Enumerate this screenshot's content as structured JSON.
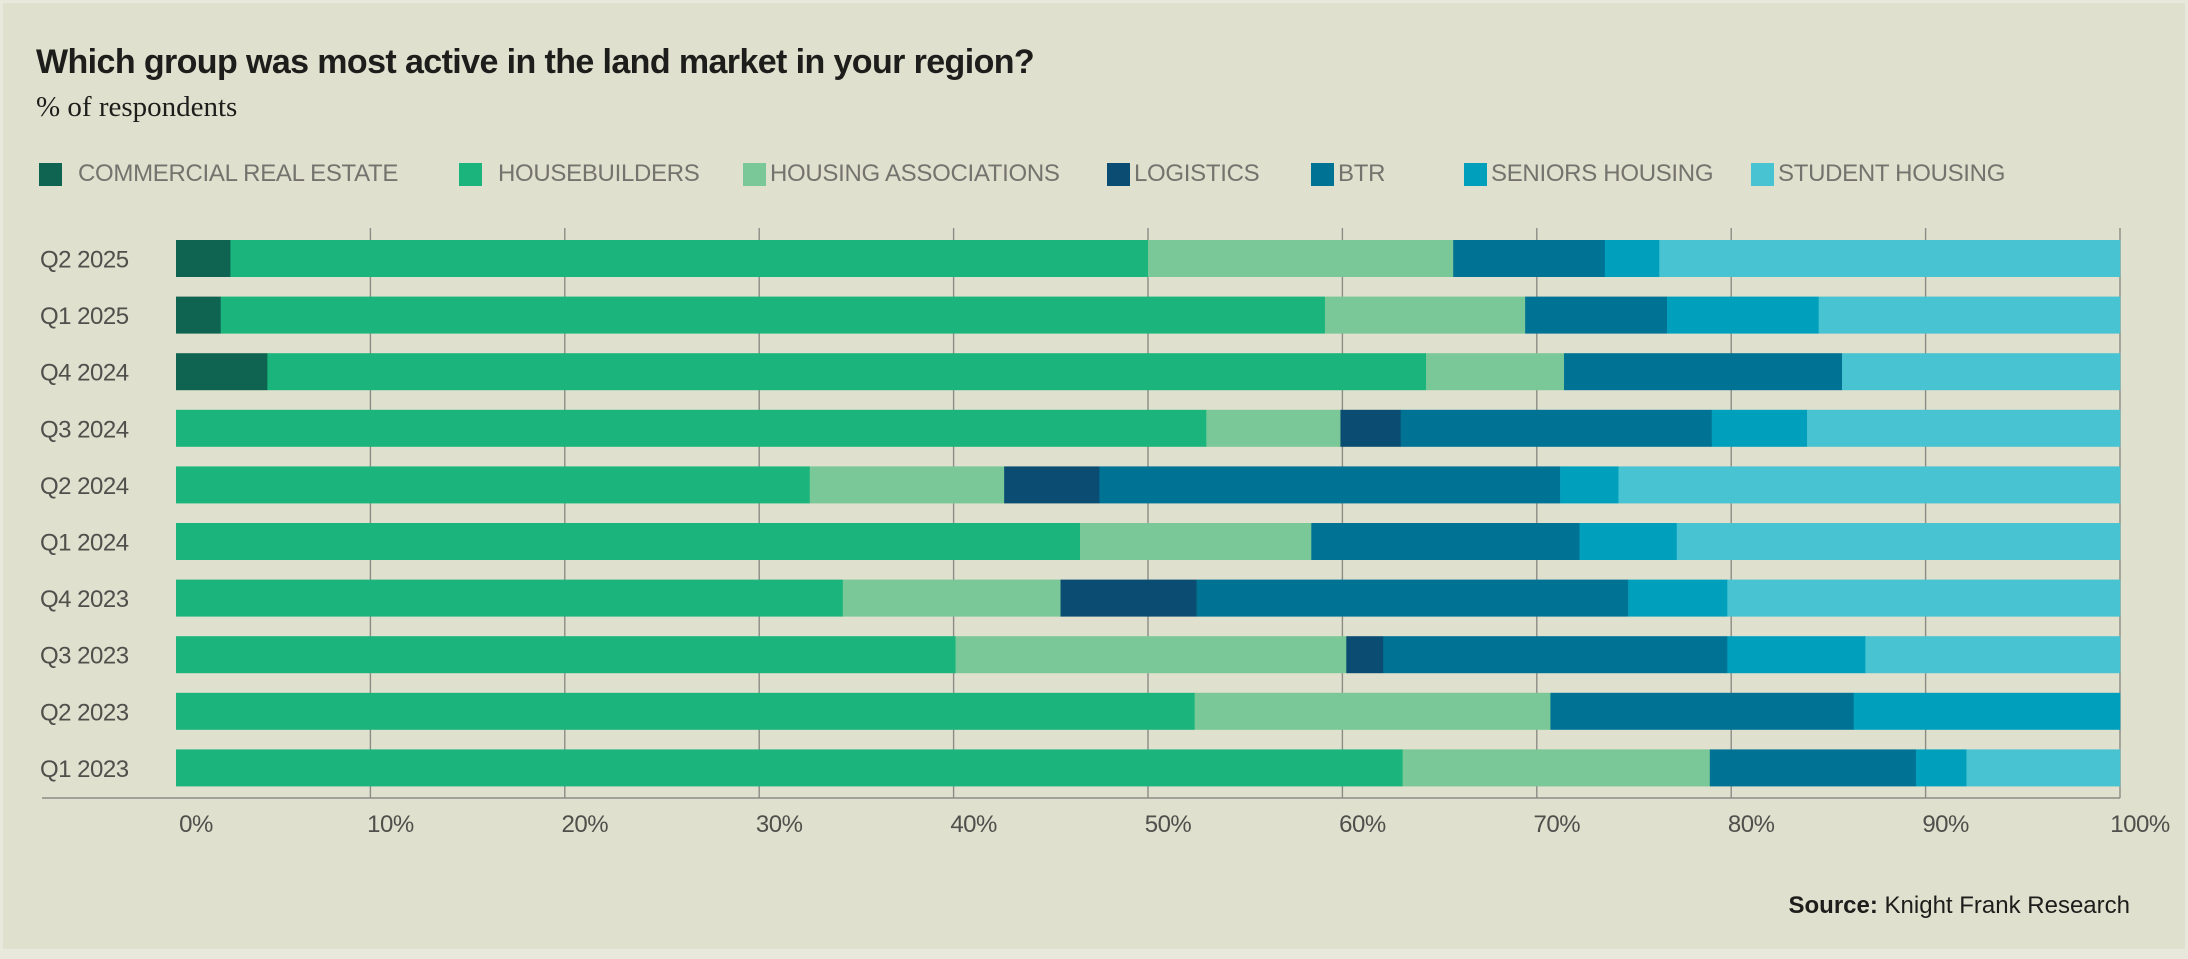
{
  "title": "Which group was most active in the land market in your region?",
  "subtitle": "% of respondents",
  "source_label": "Source:",
  "source_text": " Knight Frank Research",
  "chart_data": {
    "type": "bar",
    "orientation": "horizontal",
    "stacked": true,
    "title": "Which group was most active in the land market in your region?",
    "subtitle": "% of respondents",
    "xlabel": "",
    "ylabel": "",
    "xlim": [
      0,
      100
    ],
    "x_ticks": [
      "0%",
      "10%",
      "20%",
      "30%",
      "40%",
      "50%",
      "60%",
      "70%",
      "80%",
      "90%",
      "100%"
    ],
    "grid": true,
    "legend_position": "top",
    "categories": [
      "Q2 2025",
      "Q1 2025",
      "Q4 2024",
      "Q3 2024",
      "Q2 2024",
      "Q1 2024",
      "Q4 2023",
      "Q3 2023",
      "Q2 2023",
      "Q1 2023"
    ],
    "series": [
      {
        "name": "COMMERCIAL REAL ESTATE",
        "color": "#0f6451",
        "values": [
          2.8,
          2.3,
          4.7,
          0,
          0,
          0,
          0,
          0,
          0,
          0
        ]
      },
      {
        "name": "HOUSEBUILDERS",
        "color": "#1bb47d",
        "values": [
          47.2,
          56.8,
          59.6,
          53.0,
          32.6,
          46.5,
          34.3,
          40.1,
          52.4,
          63.1
        ]
      },
      {
        "name": "HOUSING ASSOCIATIONS",
        "color": "#7ac898",
        "values": [
          15.7,
          10.3,
          7.1,
          6.9,
          10.0,
          11.9,
          11.2,
          20.1,
          18.3,
          15.8
        ]
      },
      {
        "name": "LOGISTICS",
        "color": "#0b4d72",
        "values": [
          0,
          0,
          0,
          3.1,
          4.9,
          0,
          7.0,
          1.9,
          0,
          0
        ]
      },
      {
        "name": "BTR",
        "color": "#007395",
        "values": [
          7.8,
          7.3,
          14.3,
          16.0,
          23.7,
          13.8,
          22.2,
          17.7,
          15.6,
          10.6
        ]
      },
      {
        "name": "SENIORS HOUSING",
        "color": "#00a0bd",
        "values": [
          2.8,
          7.8,
          0,
          4.9,
          3.0,
          5.0,
          5.1,
          7.1,
          13.7,
          2.6
        ]
      },
      {
        "name": "STUDENT HOUSING",
        "color": "#48c3d1",
        "values": [
          23.7,
          15.5,
          14.3,
          16.1,
          25.8,
          22.8,
          20.2,
          13.1,
          0,
          7.9
        ]
      }
    ]
  }
}
